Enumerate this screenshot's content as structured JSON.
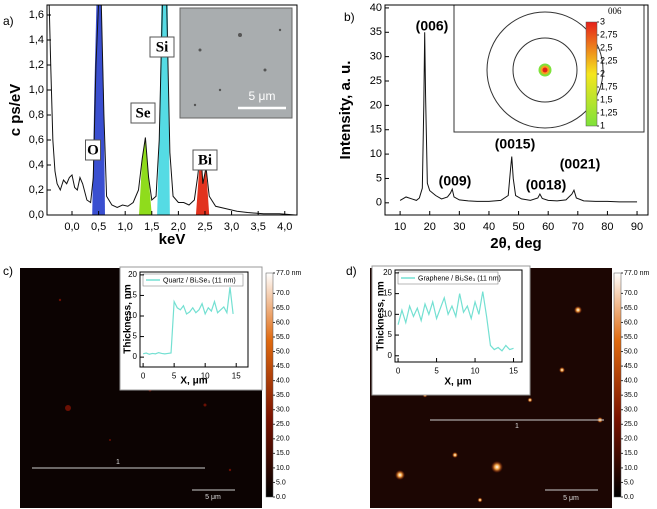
{
  "chart_data": [
    {
      "type": "line",
      "panel_label": "a)",
      "x_label": "keV",
      "y_label": "c ps/eV",
      "xlim": [
        -0.47,
        4.23
      ],
      "ylim": [
        0,
        1.68
      ],
      "xticks": [
        {
          "value": 0,
          "label": "0,0"
        },
        {
          "value": 0.5,
          "label": "0,5"
        },
        {
          "value": 1,
          "label": "1,0"
        },
        {
          "value": 1.5,
          "label": "1,5"
        },
        {
          "value": 2,
          "label": "2,0"
        },
        {
          "value": 2.5,
          "label": "2,5"
        },
        {
          "value": 3,
          "label": "3,0"
        },
        {
          "value": 3.5,
          "label": "3,5"
        },
        {
          "value": 4,
          "label": "4,0"
        }
      ],
      "yticks": [
        {
          "value": 0,
          "label": "0,0"
        },
        {
          "value": 0.2,
          "label": "0,2"
        },
        {
          "value": 0.4,
          "label": "0,4"
        },
        {
          "value": 0.6,
          "label": "0,6"
        },
        {
          "value": 0.8,
          "label": "0,8"
        },
        {
          "value": 1,
          "label": "1,0"
        },
        {
          "value": 1.2,
          "label": "1,2"
        },
        {
          "value": 1.4,
          "label": "1,4"
        },
        {
          "value": 1.6,
          "label": "1,6"
        }
      ],
      "annotations": [
        "O",
        "Se",
        "Si",
        "Bi"
      ],
      "inset_scale": "5 μm",
      "series": [
        {
          "color": "#3a4fd0",
          "fill": true,
          "x": [
            0.38,
            0.42,
            0.46,
            0.5,
            0.55,
            0.6,
            0.62
          ],
          "values": [
            0,
            1.0,
            1.7,
            1.7,
            1.7,
            0.9,
            0
          ]
        },
        {
          "color": "#55dbe4",
          "fill": true,
          "x": [
            1.6,
            1.64,
            1.68,
            1.74,
            1.8,
            1.84
          ],
          "values": [
            0,
            0.6,
            1.7,
            1.7,
            1.7,
            0
          ]
        },
        {
          "color": "#8fdc1c",
          "fill": true,
          "x": [
            1.26,
            1.32,
            1.38,
            1.44,
            1.5
          ],
          "values": [
            0,
            0.45,
            0.62,
            0.3,
            0
          ]
        },
        {
          "color": "#e2321e",
          "fill": true,
          "x": [
            2.33,
            2.38,
            2.42,
            2.46,
            2.52,
            2.58
          ],
          "values": [
            0,
            0.3,
            0.52,
            0.25,
            0.38,
            0
          ]
        },
        {
          "color": "#111111",
          "x": [
            -0.46,
            -0.43,
            -0.4,
            -0.36,
            -0.32,
            -0.28,
            -0.22,
            -0.16,
            -0.1,
            -0.05,
            0,
            0.05,
            0.1,
            0.15,
            0.2,
            0.28,
            0.35,
            0.4,
            0.45,
            0.5,
            0.55,
            0.6,
            0.65,
            0.75,
            0.85,
            0.95,
            1.05,
            1.15,
            1.25,
            1.32,
            1.38,
            1.44,
            1.5,
            1.58,
            1.64,
            1.7,
            1.78,
            1.84,
            1.9,
            2.0,
            2.1,
            2.2,
            2.3,
            2.36,
            2.42,
            2.46,
            2.52,
            2.58,
            2.7,
            2.9,
            3.1,
            3.3,
            3.6,
            3.9,
            4.2
          ],
          "values": [
            1.7,
            1.7,
            1.2,
            0.6,
            0.35,
            0.25,
            0.2,
            0.28,
            0.25,
            0.3,
            0.32,
            0.22,
            0.2,
            0.3,
            0.25,
            0.12,
            0.1,
            0.3,
            1.2,
            1.7,
            1.7,
            0.8,
            0.15,
            0.08,
            0.06,
            0.08,
            0.07,
            0.1,
            0.2,
            0.45,
            0.62,
            0.3,
            0.12,
            0.15,
            0.6,
            1.7,
            1.7,
            0.5,
            0.15,
            0.1,
            0.1,
            0.08,
            0.12,
            0.3,
            0.52,
            0.25,
            0.38,
            0.15,
            0.07,
            0.05,
            0.03,
            0.02,
            0.01,
            0.01,
            0
          ]
        }
      ]
    },
    {
      "type": "line",
      "panel_label": "b)",
      "x_label": "2θ, deg",
      "y_label": "Intensity, a. u.",
      "xlim": [
        4.9,
        93.7
      ],
      "ylim": [
        -2.5,
        40.6
      ],
      "xticks": [
        10,
        20,
        30,
        40,
        50,
        60,
        70,
        80,
        90
      ],
      "yticks": [
        0,
        5,
        10,
        15,
        20,
        25,
        30,
        35,
        40
      ],
      "annotations": [
        "(006)",
        "(009)",
        "(0015)",
        "(0018)",
        "(0021)"
      ],
      "colorbar": {
        "title": "006",
        "lim": [
          1,
          3
        ],
        "ticks": [
          3,
          {
            "value": 2.75,
            "label": "2,75"
          },
          {
            "value": 2.5,
            "label": "2,5"
          },
          {
            "value": 2.25,
            "label": "2,25"
          },
          2,
          {
            "value": 1.75,
            "label": "1,75"
          },
          {
            "value": 1.5,
            "label": "1,5"
          },
          {
            "value": 1.25,
            "label": "1,25"
          },
          1
        ]
      },
      "series": [
        {
          "color": "#111111",
          "x": [
            10,
            12,
            14,
            15.5,
            16.5,
            17.5,
            18,
            18.3,
            18.6,
            19.2,
            20,
            22,
            24,
            26,
            27,
            27.6,
            28.2,
            30,
            33,
            36,
            40,
            44,
            46.5,
            47.3,
            47.7,
            48.2,
            49,
            51,
            54,
            56.5,
            57.2,
            58,
            60,
            63,
            66,
            68,
            68.7,
            69.5,
            72,
            76,
            80,
            84,
            88,
            90
          ],
          "values": [
            0.5,
            1.2,
            0.8,
            0.5,
            1.0,
            3.0,
            20,
            35,
            22,
            4,
            2.5,
            1.5,
            0.8,
            1.2,
            2.0,
            2.8,
            1.2,
            0.6,
            0.4,
            0.3,
            0.3,
            0.5,
            1.5,
            7,
            9.5,
            5,
            1.5,
            0.8,
            0.5,
            1.0,
            1.8,
            0.9,
            0.5,
            0.4,
            0.6,
            1.8,
            2.6,
            1.0,
            0.4,
            0.3,
            0.3,
            0.2,
            0.2,
            0.2
          ]
        }
      ]
    },
    {
      "type": "line",
      "panel_label": "c)",
      "x_label": "X, μm",
      "y_label": "Thickness, nm",
      "xlim": [
        -0.5,
        16.9
      ],
      "ylim": [
        -2.4,
        20.7
      ],
      "xticks": [
        0,
        5,
        10,
        15
      ],
      "yticks": [
        0,
        5,
        10,
        15,
        20
      ],
      "annotations": [
        "1",
        "5 μm"
      ],
      "colorbar": {
        "lim": [
          0,
          77
        ],
        "ticks": [
          {
            "value": 77,
            "label": "77.0 nm"
          },
          {
            "value": 70,
            "label": "70.0"
          },
          {
            "value": 65,
            "label": "65.0"
          },
          {
            "value": 60,
            "label": "60.0"
          },
          {
            "value": 55,
            "label": "55.0"
          },
          {
            "value": 50,
            "label": "50.0"
          },
          {
            "value": 45,
            "label": "45.0"
          },
          {
            "value": 40,
            "label": "40.0"
          },
          {
            "value": 35,
            "label": "35.0"
          },
          {
            "value": 30,
            "label": "30.0"
          },
          {
            "value": 25,
            "label": "25.0"
          },
          {
            "value": 20,
            "label": "20.0"
          },
          {
            "value": 15,
            "label": "15.0"
          },
          {
            "value": 10,
            "label": "10.0"
          },
          {
            "value": 5,
            "label": "5.0"
          },
          {
            "value": 0,
            "label": "0.0"
          }
        ]
      },
      "series": [
        {
          "name": "Quartz / Bi₂Se₃ (11 nm)",
          "color": "#74e0d2",
          "x": [
            0,
            0.5,
            1,
            1.5,
            2,
            2.5,
            3,
            3.5,
            4,
            4.5,
            5,
            5.5,
            6,
            6.5,
            7,
            7.5,
            8,
            8.5,
            9,
            9.5,
            10,
            10.5,
            11,
            11.5,
            12,
            12.5,
            13,
            13.5,
            14,
            14.5
          ],
          "values": [
            0.8,
            1.0,
            0.7,
            0.9,
            0.8,
            1.1,
            0.9,
            0.8,
            0.9,
            1.0,
            13.5,
            12.0,
            11.5,
            12.5,
            10.5,
            11.0,
            12.0,
            10.8,
            11.5,
            13.0,
            10.5,
            12.0,
            11.2,
            13.5,
            10.8,
            11.5,
            12.2,
            10.8,
            17.0,
            10.5
          ]
        }
      ]
    },
    {
      "type": "line",
      "panel_label": "d)",
      "x_label": "X, μm",
      "y_label": "Thickness, nm",
      "xlim": [
        -0.4,
        16.1
      ],
      "ylim": [
        -1.5,
        20.7
      ],
      "xticks": [
        0,
        5,
        10,
        15
      ],
      "yticks": [
        0,
        5,
        10,
        15,
        20
      ],
      "annotations": [
        "1",
        "5 μm"
      ],
      "colorbar": {
        "lim": [
          0,
          77
        ],
        "ticks": [
          {
            "value": 77,
            "label": "77.0 nm"
          },
          {
            "value": 70,
            "label": "70.0"
          },
          {
            "value": 65,
            "label": "65.0"
          },
          {
            "value": 60,
            "label": "60.0"
          },
          {
            "value": 55,
            "label": "55.0"
          },
          {
            "value": 50,
            "label": "50.0"
          },
          {
            "value": 45,
            "label": "45.0"
          },
          {
            "value": 40,
            "label": "40.0"
          },
          {
            "value": 35,
            "label": "35.0"
          },
          {
            "value": 30,
            "label": "30.0"
          },
          {
            "value": 25,
            "label": "25.0"
          },
          {
            "value": 20,
            "label": "20.0"
          },
          {
            "value": 15,
            "label": "15.0"
          },
          {
            "value": 10,
            "label": "10.0"
          },
          {
            "value": 5,
            "label": "5.0"
          },
          {
            "value": 0,
            "label": "0.0"
          }
        ]
      },
      "series": [
        {
          "name": "Graphene / Bi₂Se₃ (11 nm)",
          "color": "#74e0d2",
          "x": [
            0,
            0.5,
            1,
            1.5,
            2,
            2.5,
            3,
            3.5,
            4,
            4.5,
            5,
            5.5,
            6,
            6.5,
            7,
            7.5,
            8,
            8.5,
            9,
            9.5,
            10,
            10.5,
            11,
            11.5,
            12,
            12.5,
            13,
            13.5,
            14,
            14.5,
            15
          ],
          "values": [
            7.5,
            11,
            8,
            12,
            9.5,
            11.5,
            8.5,
            12.5,
            10,
            13,
            9,
            11.5,
            14,
            10,
            12,
            9.5,
            15,
            10.5,
            12,
            9,
            13,
            10,
            15.5,
            9.5,
            2.5,
            1.5,
            2.0,
            1.2,
            2.5,
            1.5,
            1.8
          ]
        }
      ]
    }
  ]
}
